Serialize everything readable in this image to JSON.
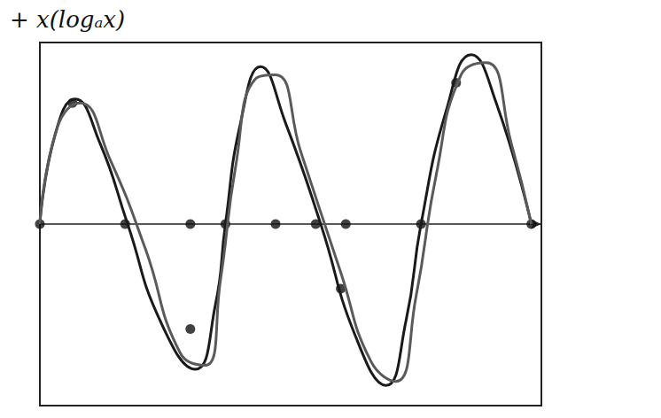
{
  "chart_data": {
    "type": "line",
    "title": "+ x(logₐx)",
    "xlim": [
      0,
      10
    ],
    "ylim": [
      -4.5,
      4.5
    ],
    "tick_labels": false,
    "series": [
      {
        "color": "#1a1a1a",
        "line_style": "solid",
        "x": [
          0,
          0.3,
          0.7,
          1.2,
          1.75,
          2.4,
          3.1,
          3.5,
          3.7,
          4.0,
          4.4,
          4.9,
          5.6,
          6.3,
          6.9,
          7.3,
          7.6,
          8.1,
          8.6,
          9.1,
          9.8
        ],
        "values": [
          0,
          2.2,
          3.1,
          2.0,
          0,
          -2.4,
          -3.6,
          -2.0,
          0,
          2.5,
          3.9,
          2.5,
          0,
          -2.8,
          -4.0,
          -2.4,
          0,
          2.8,
          4.2,
          3.0,
          0
        ]
      },
      {
        "color": "#5a5a5a",
        "line_style": "solid",
        "x": [
          0,
          0.35,
          0.8,
          1.4,
          2.1,
          2.8,
          3.3,
          3.6,
          3.9,
          4.3,
          4.7,
          5.2,
          6.0,
          6.6,
          7.1,
          7.5,
          7.9,
          8.4,
          8.9,
          9.4,
          9.8
        ],
        "values": [
          0,
          2.4,
          3.0,
          1.6,
          -0.6,
          -3.2,
          -3.5,
          -1.4,
          1.4,
          3.6,
          3.7,
          1.8,
          -1.2,
          -3.4,
          -3.9,
          -1.8,
          1.2,
          3.7,
          4.0,
          2.0,
          0
        ]
      },
      {
        "type": "scatter",
        "color": "#111111",
        "marker": "circle",
        "x": [
          0,
          0.65,
          1.7,
          3.0,
          3.0,
          3.7,
          4.7,
          5.5,
          6.1,
          6.0,
          7.6,
          9.8,
          8.3
        ],
        "values": [
          0,
          3.0,
          0,
          0,
          -2.6,
          0,
          0,
          0,
          0,
          -1.6,
          0,
          0,
          3.5
        ]
      }
    ]
  }
}
